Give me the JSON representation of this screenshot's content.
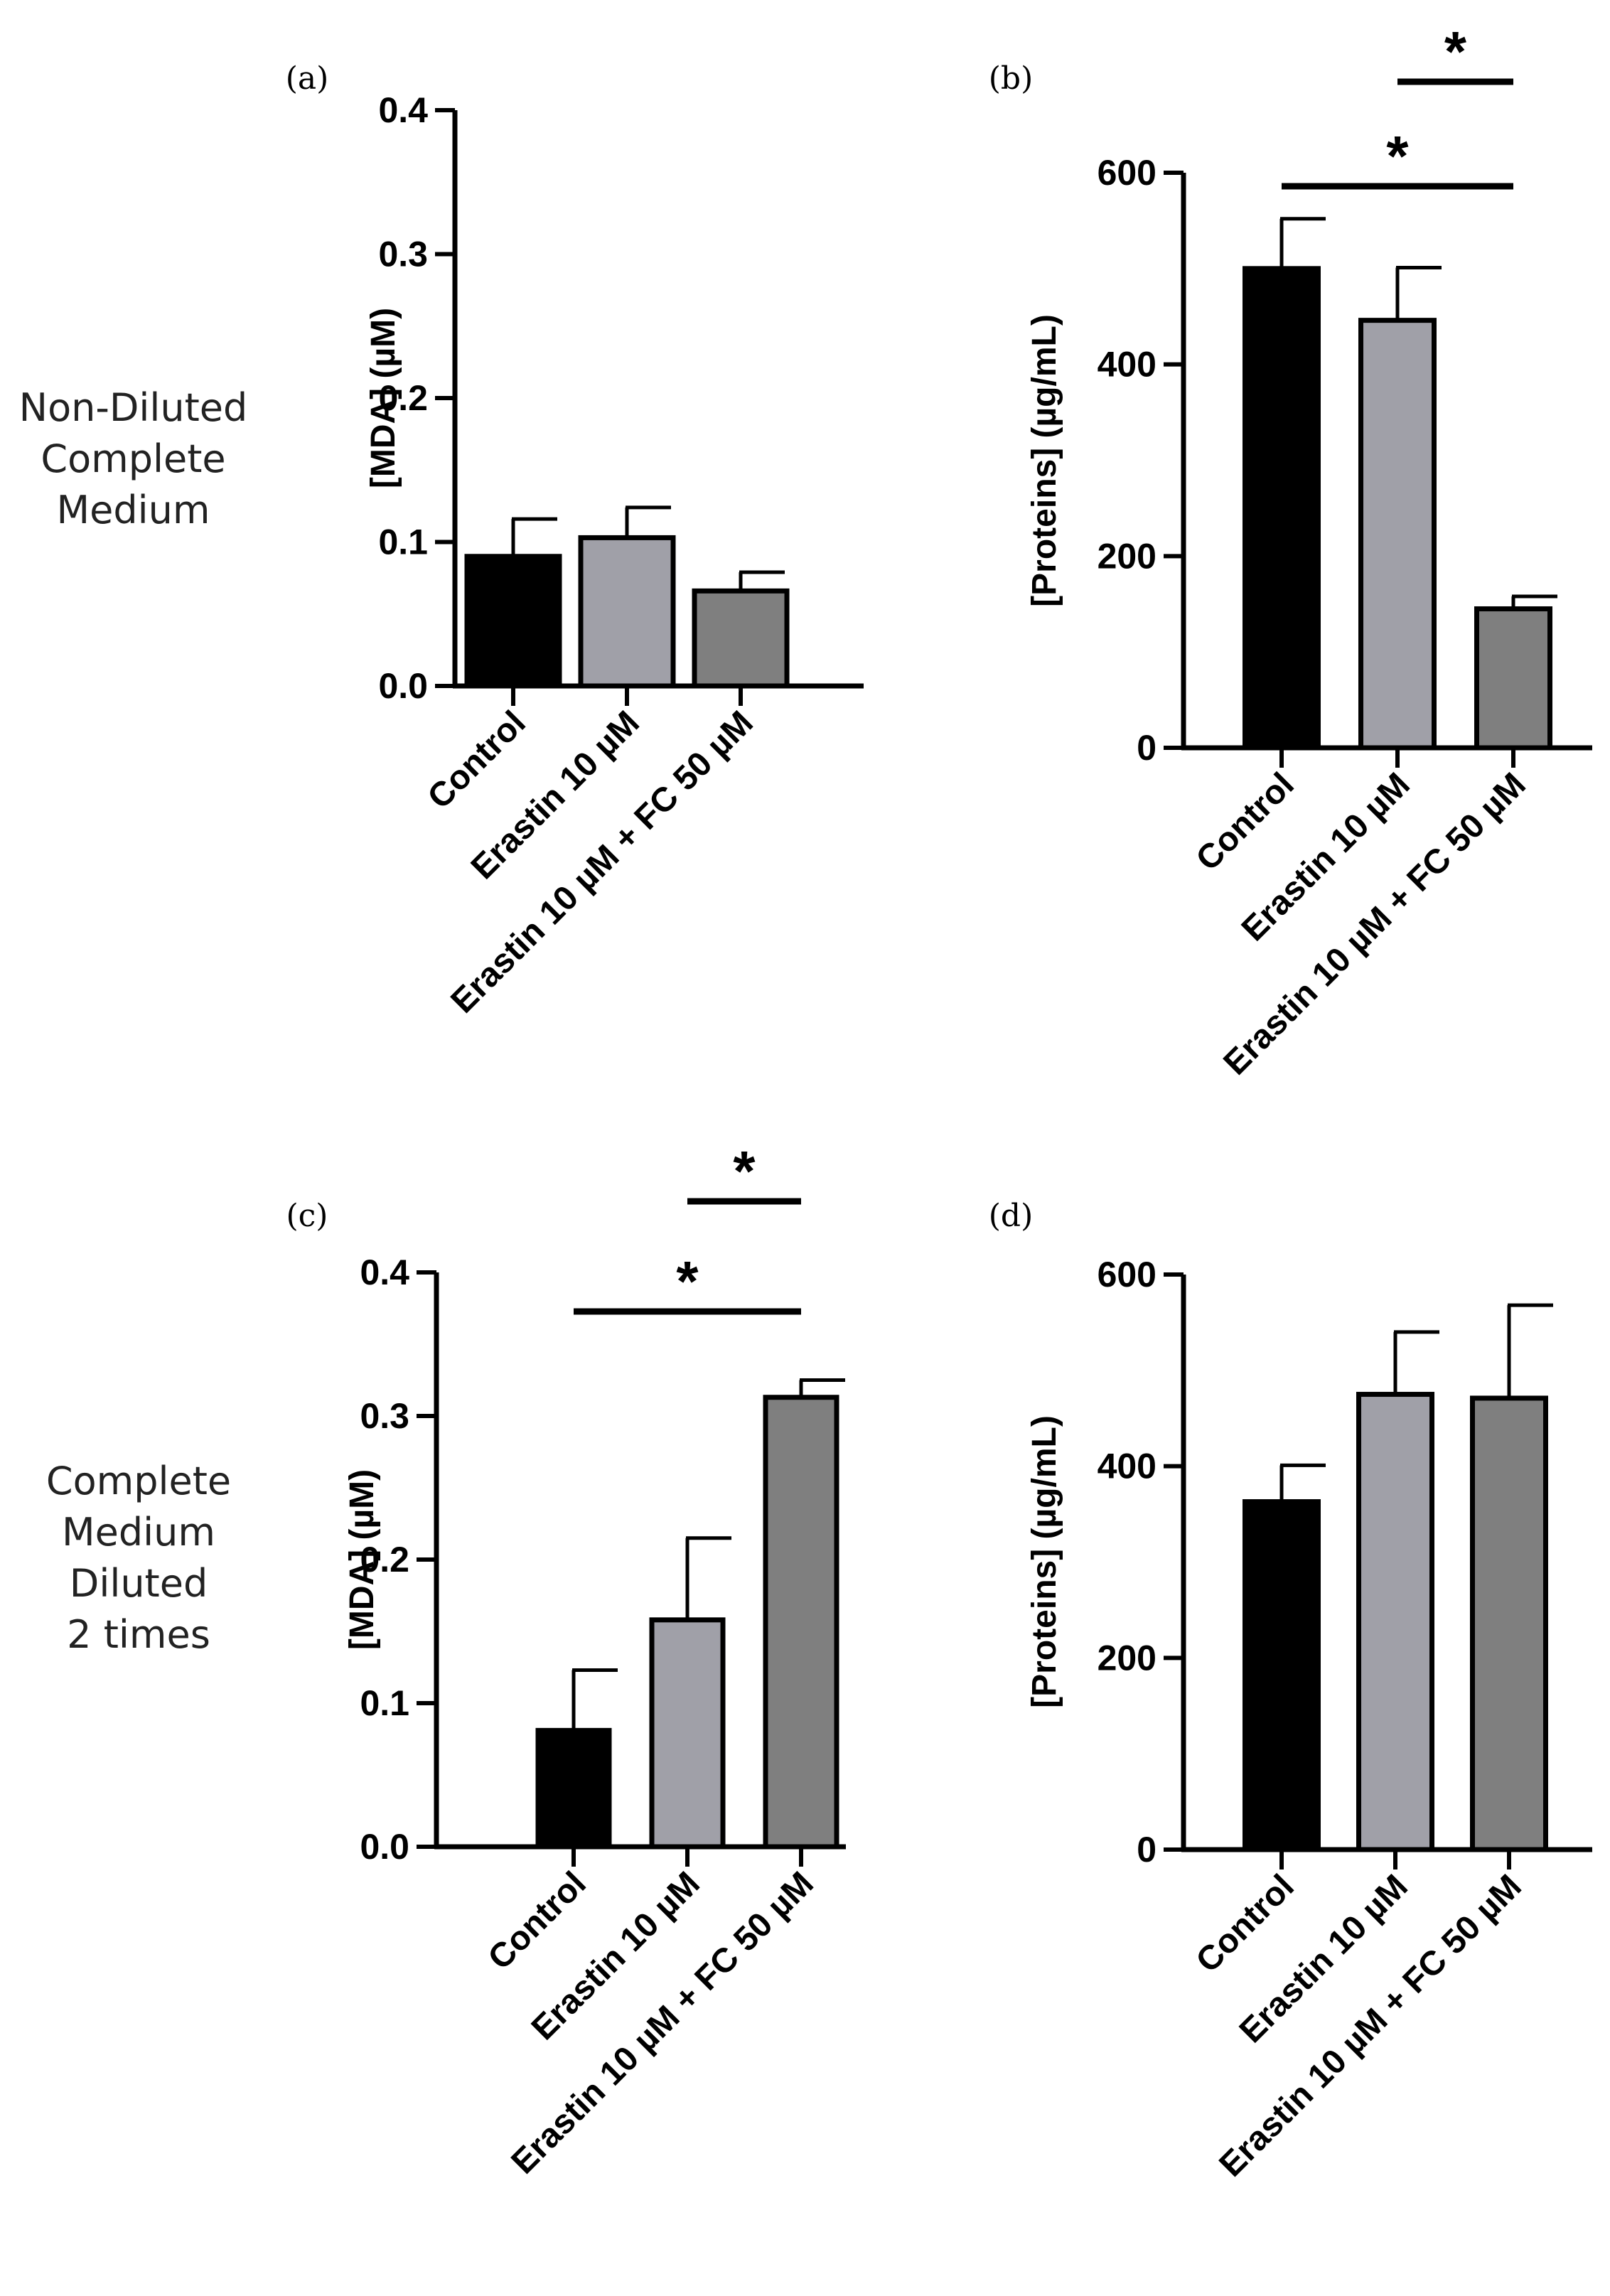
{
  "row_labels": [
    [
      "Non-Diluted",
      "Complete",
      "Medium"
    ],
    [
      "Complete",
      "Medium",
      "Diluted",
      "2 times"
    ]
  ],
  "colors": {
    "control": "#000000",
    "erastin": "#a0a0a8",
    "erastin_fc": "#7f7f7f",
    "axis": "#000000"
  },
  "chart_data": [
    {
      "panel": "(a)",
      "type": "bar",
      "title": "",
      "xlabel": "",
      "ylabel": "[MDA] (µM)",
      "categories": [
        "Control",
        "Erastin 10 µM",
        "Erastin 10 µM + FC 50 µM"
      ],
      "values": [
        0.09,
        0.103,
        0.066
      ],
      "errors": [
        0.026,
        0.021,
        0.013
      ],
      "ylim": [
        0,
        0.4
      ],
      "yticks": [
        "0.0",
        "0.1",
        "0.2",
        "0.3",
        "0.4"
      ],
      "significance": []
    },
    {
      "panel": "(b)",
      "type": "bar",
      "title": "",
      "xlabel": "",
      "ylabel": "[Proteins] (µg/mL)",
      "categories": [
        "Control",
        "Erastin 10 µM",
        "Erastin 10 µM + FC 50 µM"
      ],
      "values": [
        500,
        446,
        145
      ],
      "errors": [
        52,
        55,
        13
      ],
      "ylim": [
        0,
        600
      ],
      "yticks": [
        "0",
        "200",
        "400",
        "600"
      ],
      "significance": [
        {
          "from": 1,
          "to": 2,
          "label": "*"
        },
        {
          "from": 0,
          "to": 2,
          "label": "*"
        }
      ]
    },
    {
      "panel": "(c)",
      "type": "bar",
      "title": "",
      "xlabel": "",
      "ylabel": "[MDA] (µM)",
      "categories": [
        "Control",
        "Erastin 10 µM",
        "Erastin 10 µM + FC 50 µM"
      ],
      "values": [
        0.081,
        0.158,
        0.313
      ],
      "errors": [
        0.042,
        0.057,
        0.012
      ],
      "ylim": [
        0,
        0.4
      ],
      "yticks": [
        "0.0",
        "0.1",
        "0.2",
        "0.3",
        "0.4"
      ],
      "significance": [
        {
          "from": 1,
          "to": 2,
          "label": "*"
        },
        {
          "from": 0,
          "to": 2,
          "label": "*"
        }
      ]
    },
    {
      "panel": "(d)",
      "type": "bar",
      "title": "",
      "xlabel": "",
      "ylabel": "[Proteins] (µg/mL)",
      "categories": [
        "Control",
        "Erastin 10 µM",
        "Erastin 10 µM + FC 50 µM"
      ],
      "values": [
        363,
        475,
        471
      ],
      "errors": [
        38,
        65,
        97
      ],
      "ylim": [
        0,
        600
      ],
      "yticks": [
        "0",
        "200",
        "400",
        "600"
      ],
      "significance": []
    }
  ]
}
